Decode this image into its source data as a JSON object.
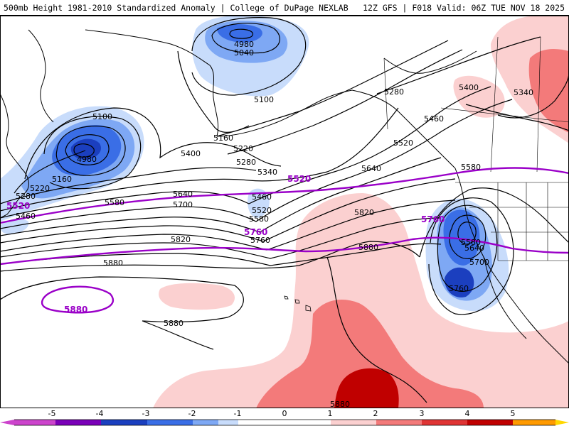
{
  "header": {
    "title": "500mb Height 1981-2010 Standardized Anomaly | College of DuPage NEXLAB",
    "run_info": "12Z GFS | F018 Valid: 06Z TUE NOV 18 2025"
  },
  "contour_labels": {
    "l4980_a": "4980",
    "l5040_a": "5040",
    "l5100_a": "5100",
    "l5100_b": "5100",
    "l4980_b": "4980",
    "l5160_a": "5160",
    "l5160_b": "5160",
    "l5220_a": "5220",
    "l5220_b": "5220",
    "l5280_a": "5280",
    "l5280_b": "5280",
    "l5280_c": "5280",
    "l5340_a": "5340",
    "l5340_b": "5340",
    "l5400_a": "5400",
    "l5400_b": "5400",
    "l5460_a": "5460",
    "l5460_b": "5460",
    "l5460_c": "5460",
    "l5520_a": "5520",
    "l5520_b": "5520",
    "l5580_a": "5580",
    "l5580_b": "5580",
    "l5580_c": "5580",
    "l5580_d": "5580",
    "l5640_a": "5640",
    "l5640_b": "5640",
    "l5700_a": "5700",
    "l5700_b": "5700",
    "l5760_a": "5760",
    "l5760_b": "5760",
    "l5820_a": "5820",
    "l5820_b": "5820",
    "l5880_a": "5880",
    "l5880_b": "5880",
    "l5880_c": "5880",
    "l5880_d": "5880",
    "l5640_c": "5640"
  },
  "purple_labels": {
    "p5520_a": "5520",
    "p5520_b": "5520",
    "p5760_a": "5760",
    "p5760_b": "5760",
    "p5880": "5880"
  },
  "colorbar": {
    "ticks": [
      "-5",
      "-4",
      "-3",
      "-2",
      "-1",
      "0",
      "1",
      "2",
      "3",
      "4",
      "5"
    ],
    "colors": {
      "m5": "#cc44cc",
      "m4": "#7a00b8",
      "m3": "#1b3fbf",
      "m2": "#3a6ee6",
      "m15": "#7ea8f4",
      "m1": "#c8dcfb",
      "zero": "#ffffff",
      "p1": "#fbd0d0",
      "p2": "#f37a7a",
      "p3": "#df3434",
      "p4": "#c00000",
      "p5": "#ff9a00",
      "p6": "#ffd700"
    }
  }
}
